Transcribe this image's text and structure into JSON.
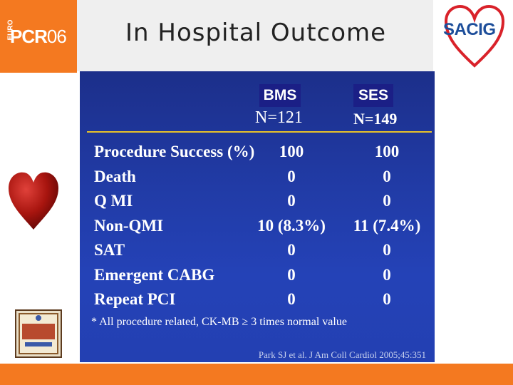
{
  "header": {
    "title": "In Hospital Outcome",
    "logo_left": {
      "prefix": "EURO",
      "main": "PCR",
      "suffix": "06"
    },
    "logo_right": {
      "text": "SACIG"
    }
  },
  "slide": {
    "columns": [
      {
        "badge": "BMS",
        "n": "N=121"
      },
      {
        "badge": "SES",
        "n": "N=149"
      }
    ],
    "rows": [
      {
        "label": "Procedure Success (%)",
        "bms": "100",
        "ses": "100"
      },
      {
        "label": "Death",
        "bms": "0",
        "ses": "0"
      },
      {
        "label": "Q MI",
        "bms": "0",
        "ses": "0"
      },
      {
        "label": "Non-QMI",
        "bms": "10 (8.3%)",
        "ses": "11 (7.4%)"
      },
      {
        "label": "SAT",
        "bms": "0",
        "ses": "0"
      },
      {
        "label": "Emergent CABG",
        "bms": "0",
        "ses": "0"
      },
      {
        "label": "Repeat PCI",
        "bms": "0",
        "ses": "0"
      }
    ],
    "footnote": "* All procedure related, CK-MB ≥ 3 times normal value",
    "citation": "Park SJ et al. J Am Coll Cardiol 2005;45:351"
  },
  "colors": {
    "brand_orange": "#f47920",
    "slide_blue": "#213ba6",
    "divider_gold": "#e8c22a",
    "sacig_blue": "#1d4e9a",
    "sacig_red": "#d9222a"
  }
}
